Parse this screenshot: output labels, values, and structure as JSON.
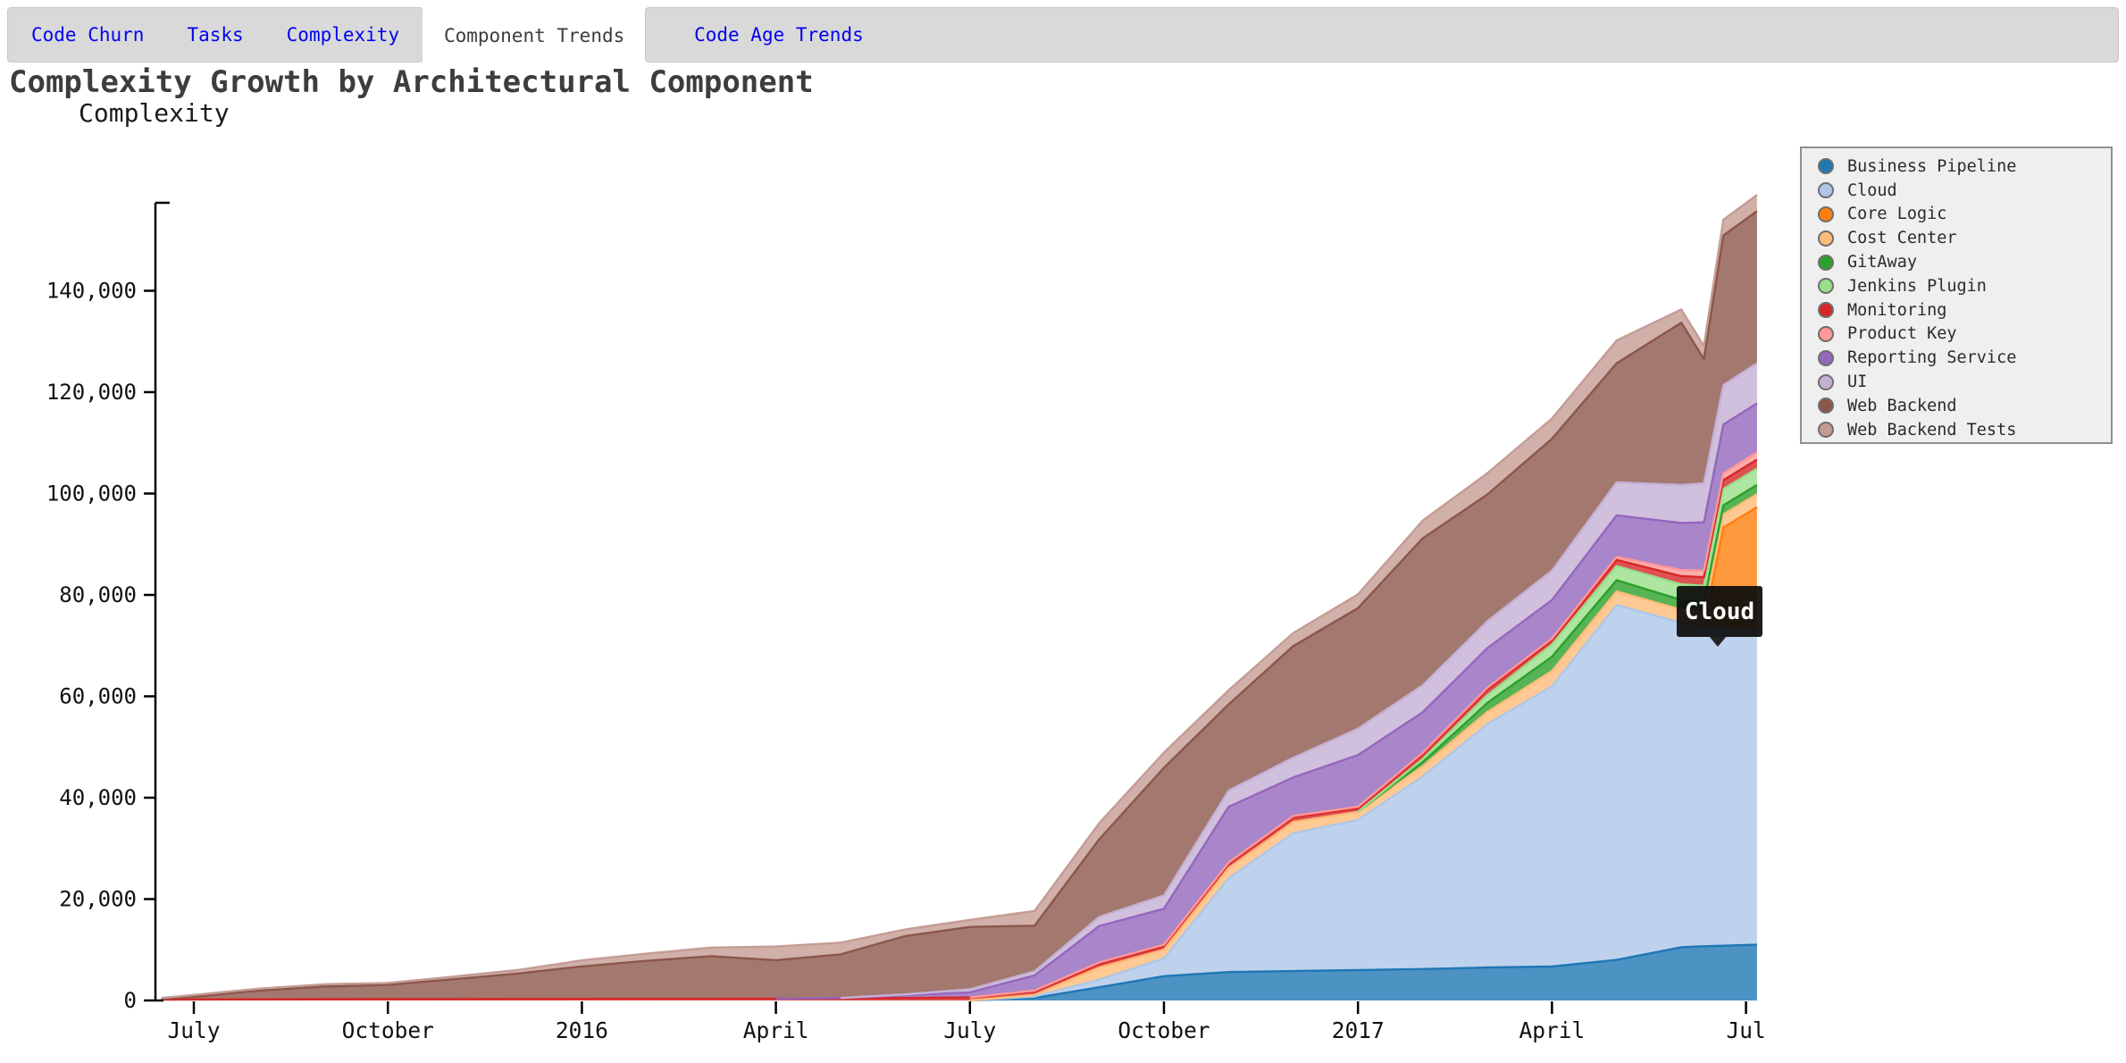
{
  "tabs": {
    "items": [
      {
        "label": "Code Churn",
        "active": false
      },
      {
        "label": "Tasks",
        "active": false
      },
      {
        "label": "Complexity",
        "active": false
      },
      {
        "label": "Component Trends",
        "active": true
      },
      {
        "label": "Code Age Trends",
        "active": false
      }
    ],
    "link_color": "#0202ee",
    "active_color": "#3c3c3c",
    "bar_color": "#d9d9d9"
  },
  "title": "Complexity Growth by Architectural Component",
  "tooltip": {
    "label": "Cloud"
  },
  "chart_data": {
    "type": "area",
    "stacked": true,
    "title": "Complexity Growth by Architectural Component",
    "ylabel": "Complexity",
    "xlabel": "",
    "ylim": [
      0,
      157350
    ],
    "grid": false,
    "legend_position": "right",
    "y_ticks": [
      {
        "value": 0,
        "label": "0"
      },
      {
        "value": 20000,
        "label": "20,000"
      },
      {
        "value": 40000,
        "label": "40,000"
      },
      {
        "value": 60000,
        "label": "60,000"
      },
      {
        "value": 80000,
        "label": "80,000"
      },
      {
        "value": 100000,
        "label": "100,000"
      },
      {
        "value": 120000,
        "label": "120,000"
      },
      {
        "value": 140000,
        "label": "140,000"
      }
    ],
    "x_ticks": [
      {
        "t": 1,
        "label": "July"
      },
      {
        "t": 4,
        "label": "October"
      },
      {
        "t": 7,
        "label": "2016"
      },
      {
        "t": 10,
        "label": "April"
      },
      {
        "t": 13,
        "label": "July"
      },
      {
        "t": 16,
        "label": "October"
      },
      {
        "t": 19,
        "label": "2017"
      },
      {
        "t": 22,
        "label": "April"
      },
      {
        "t": 25,
        "label": "Jul"
      }
    ],
    "x_points": [
      "2015-06",
      "2015-07",
      "2015-08",
      "2015-09",
      "2015-10",
      "2015-11",
      "2015-12",
      "2016-01",
      "2016-02",
      "2016-03",
      "2016-04",
      "2016-05",
      "2016-06",
      "2016-07",
      "2016-08",
      "2016-09",
      "2016-10",
      "2016-11",
      "2016-12",
      "2017-01",
      "2017-02",
      "2017-03",
      "2017-04",
      "2017-05",
      "2017-06",
      "2017-06",
      "2017-06",
      "2017-07"
    ],
    "t": [
      0.5,
      1,
      2,
      3,
      4,
      5,
      6,
      7,
      8,
      9,
      10,
      11,
      12,
      13,
      14,
      15,
      16,
      17,
      18,
      19,
      20,
      21,
      22,
      23,
      24,
      24.35,
      24.65,
      25.17
    ],
    "series": [
      {
        "name": "Business Pipeline",
        "color": "#1f77b4",
        "values": [
          0,
          0,
          0,
          0,
          0,
          0,
          0,
          0,
          0,
          0,
          0,
          0,
          0,
          0,
          500,
          2600,
          4800,
          5600,
          5800,
          6000,
          6200,
          6500,
          6700,
          8000,
          10500,
          10700,
          10800,
          11000
        ]
      },
      {
        "name": "Cloud",
        "color": "#aec7e8",
        "values": [
          0,
          0,
          0,
          0,
          0,
          0,
          0,
          0,
          0,
          0,
          0,
          0,
          0,
          0,
          300,
          1500,
          3500,
          18500,
          27200,
          29600,
          38000,
          48000,
          55300,
          70000,
          64000,
          63000,
          62500,
          62200
        ]
      },
      {
        "name": "Core Logic",
        "color": "#ff7f0e",
        "values": [
          0,
          0,
          0,
          0,
          0,
          0,
          0,
          0,
          0,
          0,
          0,
          0,
          0,
          0,
          0,
          0,
          0,
          0,
          0,
          0,
          0,
          0,
          0,
          0,
          0,
          500,
          20000,
          24100
        ]
      },
      {
        "name": "Cost Center",
        "color": "#ffbb78",
        "values": [
          0,
          0,
          0,
          0,
          0,
          0,
          0,
          0,
          0,
          0,
          0,
          0,
          0,
          0,
          300,
          2400,
          1700,
          2000,
          2200,
          1600,
          2000,
          2400,
          3000,
          2700,
          2600,
          2600,
          2600,
          2600
        ]
      },
      {
        "name": "GitAway",
        "color": "#2ca02c",
        "values": [
          0,
          0,
          0,
          0,
          0,
          0,
          0,
          0,
          0,
          0,
          0,
          0,
          0,
          0,
          0,
          0,
          0,
          0,
          0,
          0,
          800,
          1800,
          2800,
          2200,
          1900,
          1800,
          1800,
          1800
        ]
      },
      {
        "name": "Jenkins Plugin",
        "color": "#98df8a",
        "values": [
          0,
          0,
          0,
          0,
          0,
          0,
          0,
          0,
          0,
          0,
          0,
          0,
          0,
          0,
          0,
          0,
          0,
          0,
          0,
          0,
          600,
          1500,
          2400,
          2800,
          3100,
          3200,
          3200,
          3200
        ]
      },
      {
        "name": "Monitoring",
        "color": "#d62728",
        "values": [
          150,
          200,
          220,
          240,
          260,
          280,
          300,
          320,
          330,
          340,
          350,
          400,
          500,
          600,
          650,
          700,
          700,
          800,
          900,
          700,
          900,
          1100,
          800,
          1200,
          1600,
          1700,
          1750,
          1800
        ]
      },
      {
        "name": "Product Key",
        "color": "#ff9896",
        "values": [
          0,
          0,
          0,
          0,
          0,
          0,
          0,
          0,
          0,
          0,
          0,
          0,
          0,
          0,
          200,
          300,
          300,
          300,
          300,
          300,
          350,
          400,
          400,
          600,
          1200,
          1300,
          1350,
          1400
        ]
      },
      {
        "name": "Reporting Service",
        "color": "#9467bd",
        "values": [
          0,
          0,
          0,
          0,
          0,
          0,
          0,
          0,
          0,
          0,
          0,
          100,
          500,
          1000,
          3000,
          7200,
          7100,
          11000,
          7600,
          10200,
          8000,
          7800,
          7600,
          8200,
          9300,
          9500,
          9600,
          9700
        ]
      },
      {
        "name": "UI",
        "color": "#c5b0d5",
        "values": [
          0,
          0,
          0,
          0,
          0,
          0,
          0,
          0,
          0,
          0,
          0,
          0,
          200,
          600,
          800,
          1800,
          2600,
          3200,
          3900,
          5200,
          5300,
          5300,
          5800,
          6500,
          7500,
          7700,
          7800,
          7900
        ]
      },
      {
        "name": "Web Backend",
        "color": "#8c564b",
        "values": [
          200,
          500,
          1700,
          2500,
          2800,
          3900,
          5000,
          6400,
          7500,
          8400,
          7600,
          8600,
          11500,
          12300,
          9000,
          15300,
          25200,
          17000,
          22000,
          23800,
          29000,
          25000,
          26000,
          23500,
          32000,
          24500,
          29500,
          30000
        ]
      },
      {
        "name": "Web Backend Tests",
        "color": "#c49c94",
        "values": [
          150,
          400,
          400,
          450,
          400,
          500,
          700,
          1200,
          1400,
          1700,
          2700,
          2300,
          1300,
          1400,
          2900,
          3200,
          3000,
          2800,
          2600,
          2700,
          3500,
          4200,
          4000,
          4500,
          2600,
          2600,
          3100,
          3200
        ]
      }
    ]
  }
}
